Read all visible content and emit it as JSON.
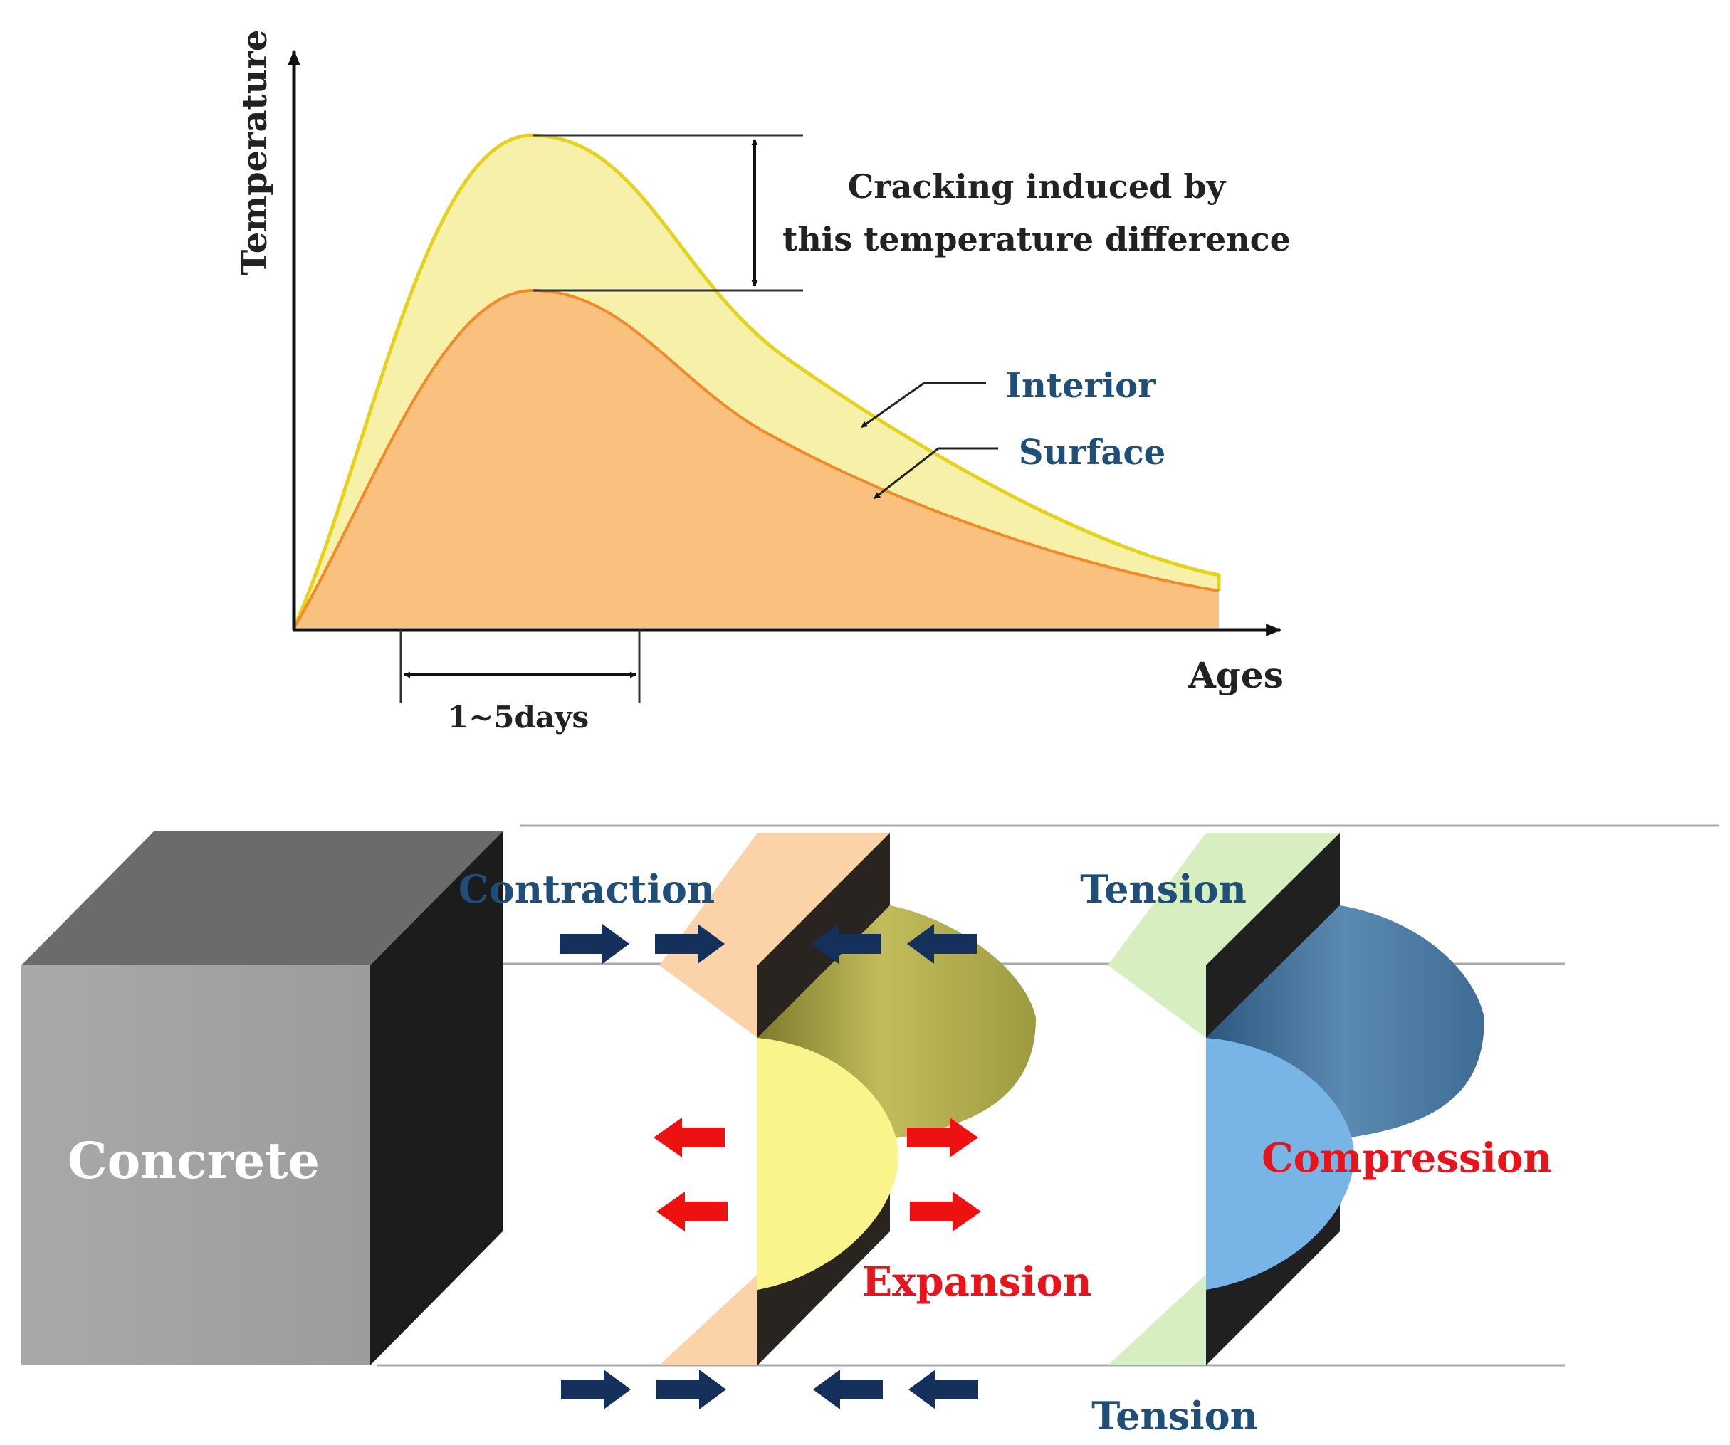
{
  "chart": {
    "y_axis_label": "Temperature",
    "x_axis_label": "Ages",
    "span_label": "1~5days",
    "annotation_line1": "Cracking induced by",
    "annotation_line2": "this temperature difference",
    "series": [
      {
        "name": "Interior",
        "fill": "#f7f0a8",
        "stroke": "#e5d21c"
      },
      {
        "name": "Surface",
        "fill": "#f9c07e",
        "stroke": "#f08a2a"
      }
    ]
  },
  "stress": {
    "block_label": "Concrete",
    "contraction_label": "Contraction",
    "expansion_label": "Expansion",
    "tension_top_label": "Tension",
    "tension_bottom_label": "Tension",
    "compression_label": "Compression",
    "colors": {
      "label_blue": "#1f4e79",
      "label_red": "#e8141c",
      "arrow_blue": "#15305a",
      "arrow_red": "#ee1111",
      "yellow_profile": "#faf58a",
      "blue_profile": "#78b4e6",
      "green_wedge": "#d7efc0",
      "peach_wedge": "#fcd2a8"
    }
  }
}
